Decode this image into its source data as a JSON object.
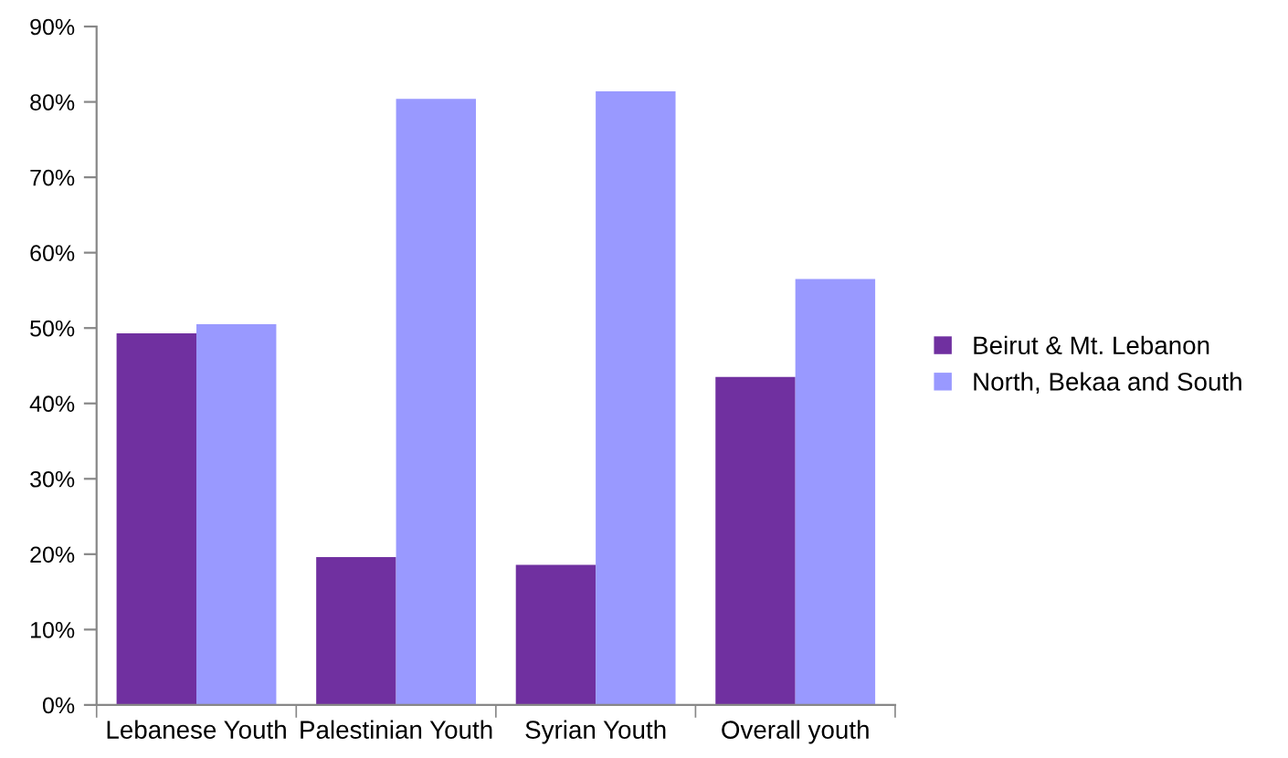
{
  "chart_data": {
    "type": "bar",
    "categories": [
      "Lebanese Youth",
      "Palestinian Youth",
      "Syrian Youth",
      "Overall youth"
    ],
    "series": [
      {
        "name": "Beirut & Mt. Lebanon",
        "color": "#7030a0",
        "values": [
          49.3,
          19.6,
          18.6,
          43.5
        ]
      },
      {
        "name": "North, Bekaa and South",
        "color": "#9999ff",
        "values": [
          50.5,
          80.4,
          81.4,
          56.5
        ]
      }
    ],
    "ylim": [
      0,
      90
    ],
    "yticks": [
      {
        "value": 0,
        "label": "0%"
      },
      {
        "value": 10,
        "label": "10%"
      },
      {
        "value": 20,
        "label": "20%"
      },
      {
        "value": 30,
        "label": "30%"
      },
      {
        "value": 40,
        "label": "40%"
      },
      {
        "value": 50,
        "label": "50%"
      },
      {
        "value": 60,
        "label": "60%"
      },
      {
        "value": 70,
        "label": "70%"
      },
      {
        "value": 80,
        "label": "80%"
      },
      {
        "value": 90,
        "label": "90%"
      }
    ],
    "grid": false,
    "legend": "right"
  }
}
